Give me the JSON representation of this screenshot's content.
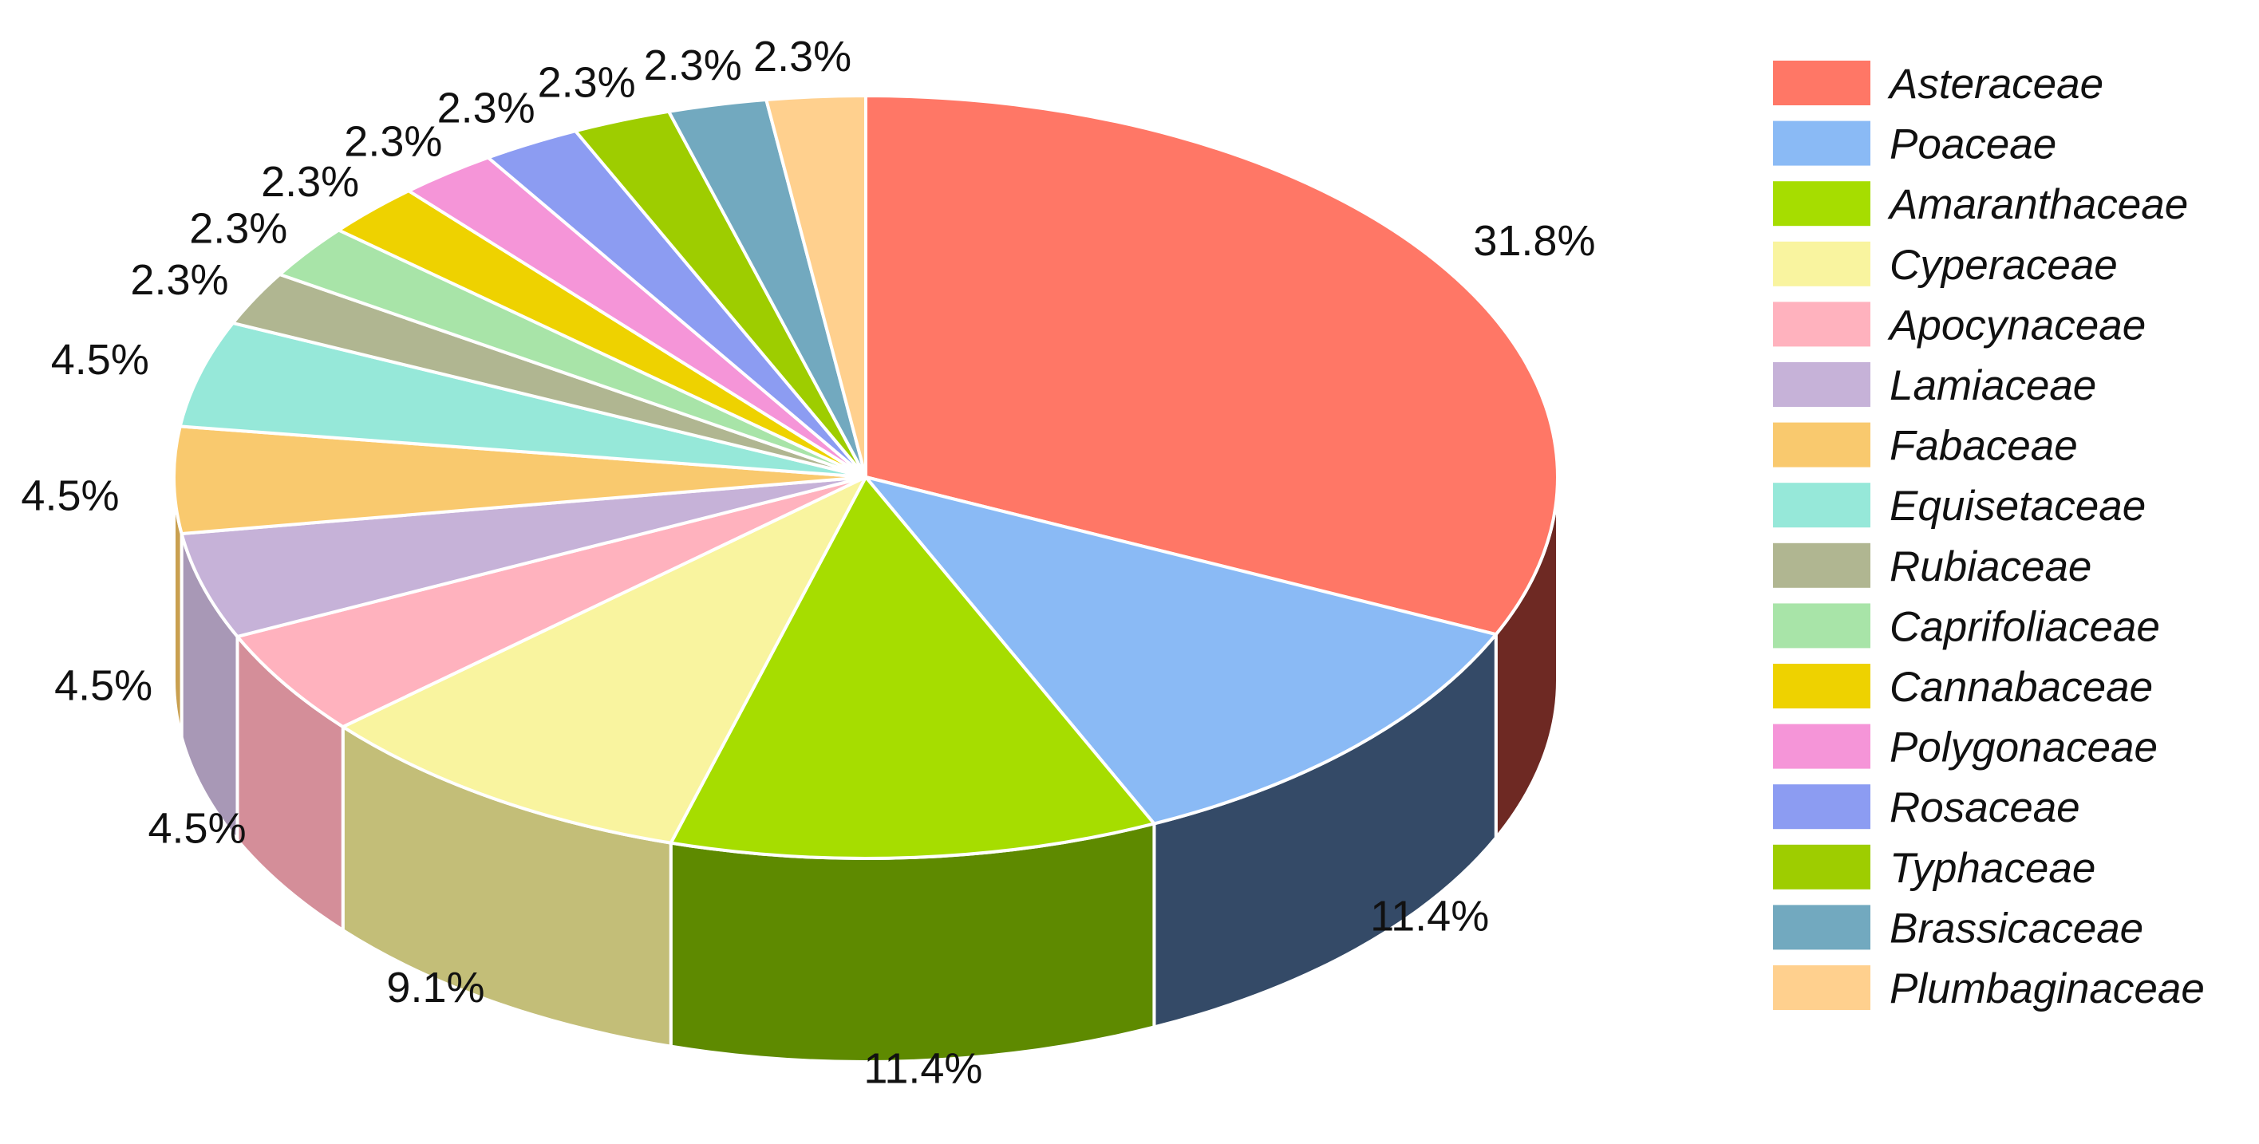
{
  "chart_data": {
    "type": "pie",
    "style": "3d-exploded-view",
    "categories": [
      "Asteraceae",
      "Poaceae",
      "Amaranthaceae",
      "Cyperaceae",
      "Apocynaceae",
      "Lamiaceae",
      "Fabaceae",
      "Equisetaceae",
      "Rubiaceae",
      "Caprifoliaceae",
      "Cannabaceae",
      "Polygonaceae",
      "Rosaceae",
      "Typhaceae",
      "Brassicaceae",
      "Plumbaginaceae"
    ],
    "values": [
      31.8,
      11.4,
      11.4,
      9.1,
      4.5,
      4.5,
      4.5,
      4.5,
      2.3,
      2.3,
      2.3,
      2.3,
      2.3,
      2.3,
      2.3,
      2.3
    ],
    "labels": [
      "31.8%",
      "11.4%",
      "11.4%",
      "9.1%",
      "4.5%",
      "4.5%",
      "4.5%",
      "4.5%",
      "2.3%",
      "2.3%",
      "2.3%",
      "2.3%",
      "2.3%",
      "2.3%",
      "2.3%",
      "2.3%"
    ],
    "colors": [
      "#FF7766",
      "#8ABAF5",
      "#A6DD00",
      "#F9F49F",
      "#FFB2BE",
      "#C6B2D8",
      "#F9C96E",
      "#96E8D9",
      "#B0B691",
      "#A8E4A8",
      "#EED200",
      "#F595D8",
      "#8C9CF2",
      "#9ECD00",
      "#72A9BF",
      "#FFD08E"
    ],
    "side_colors": [
      "#6E2923",
      "#344A67",
      "#5E8A00",
      "#C3BE78",
      "#D48E99",
      "#A898B6",
      "#C9A050",
      "#70C0B2",
      "#8C9270",
      "#84C084",
      "#B8A400",
      "#C874AE",
      "#6C7ACC",
      "#7AA800",
      "#558899",
      "#D0A868"
    ],
    "legend_position": "right",
    "start_angle_deg": 0,
    "direction": "clockwise"
  }
}
